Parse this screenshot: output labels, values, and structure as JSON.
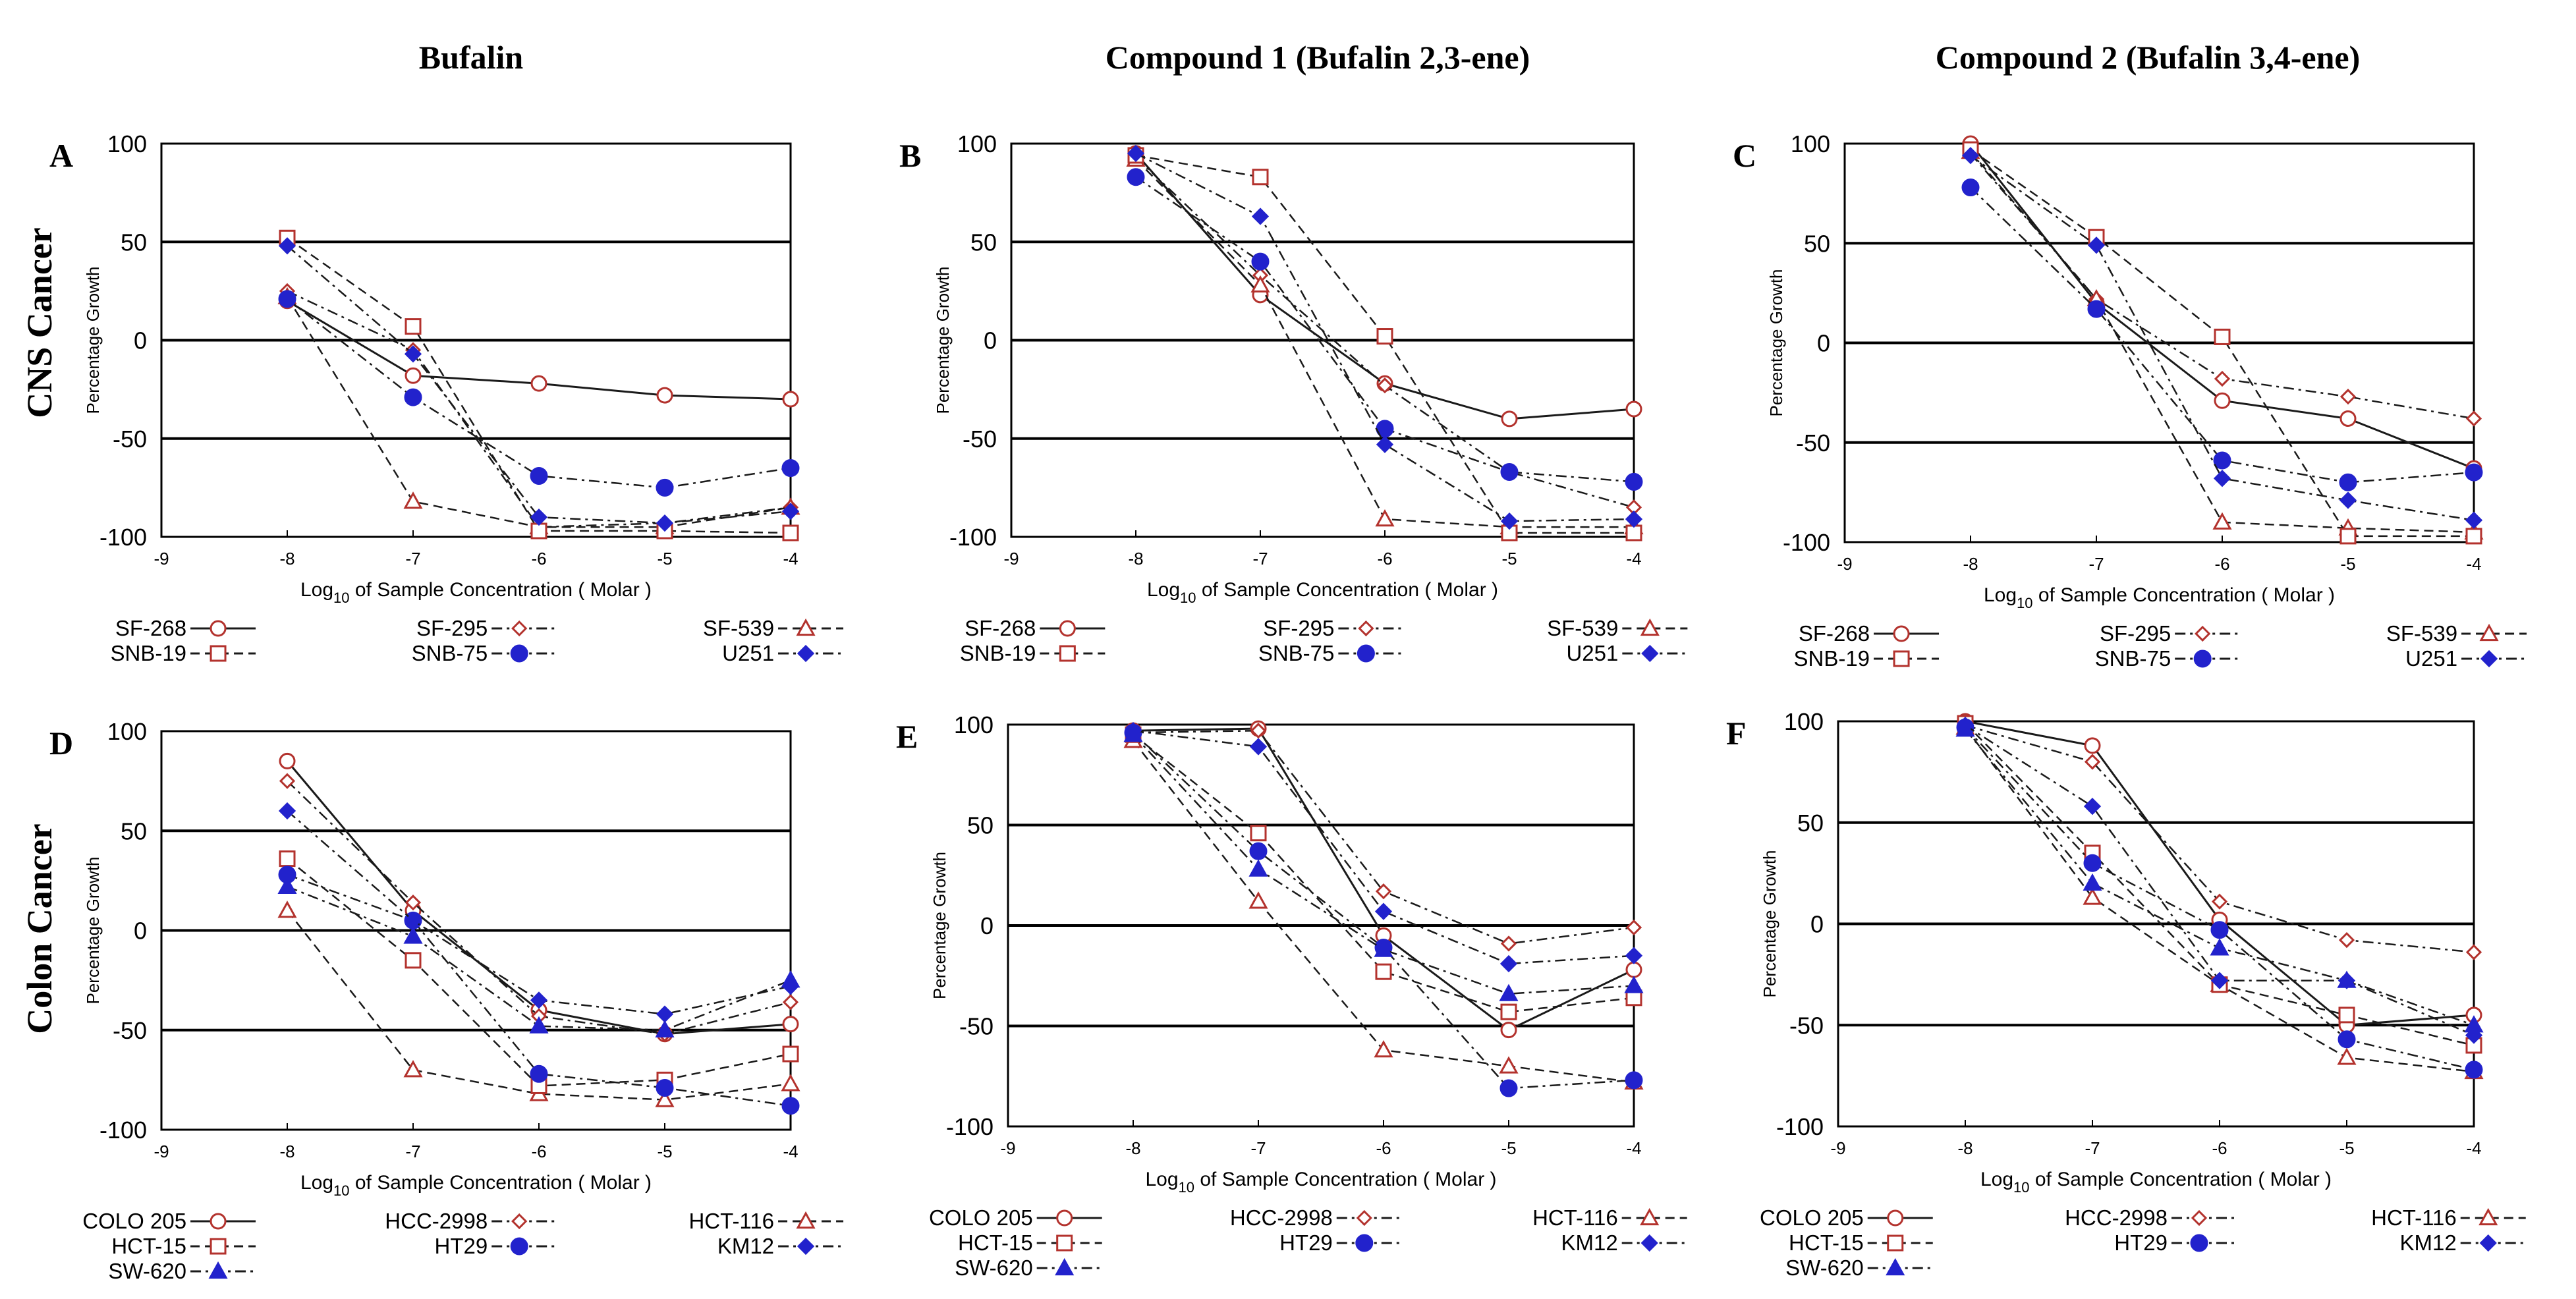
{
  "column_titles": [
    "Bufalin",
    "Compound  1 (Bufalin 2,3-ene)",
    "Compound  2 (Bufalin 3,4-ene)"
  ],
  "row_titles": [
    "CNS Cancer",
    "Colon Cancer"
  ],
  "colors": {
    "red": "#b3322d",
    "blue": "#2222cc",
    "axis": "#000000"
  },
  "chart_data": [
    {
      "panel": "A",
      "type": "line",
      "xlabel_pre": "Log",
      "xlabel_sub": "10",
      "xlabel_post": " of Sample Concentration ( Molar )",
      "ylabel": "Percentage Growth",
      "xlim": [
        -9,
        -4
      ],
      "ylim": [
        -100,
        100
      ],
      "xticks": [
        "-9",
        "-8",
        "-7",
        "-6",
        "-5",
        "-4"
      ],
      "yticks": [
        "100",
        "50",
        "0",
        "-50",
        "-100"
      ],
      "x": [
        -8,
        -7,
        -6,
        -5,
        -4
      ],
      "series": [
        {
          "name": "SF-268",
          "marker": "circle-open",
          "color": "red",
          "dash": "solid",
          "values": [
            20,
            -18,
            -22,
            -28,
            -30
          ]
        },
        {
          "name": "SF-295",
          "marker": "diamond-open",
          "color": "red",
          "dash": "dashdot",
          "values": [
            25,
            -5,
            -95,
            -93,
            -85
          ]
        },
        {
          "name": "SF-539",
          "marker": "triangle-open",
          "color": "red",
          "dash": "dashed",
          "values": [
            22,
            -82,
            -95,
            -95,
            -85
          ]
        },
        {
          "name": "SNB-19",
          "marker": "square-open",
          "color": "red",
          "dash": "dashed",
          "values": [
            52,
            7,
            -97,
            -97,
            -98
          ]
        },
        {
          "name": "SNB-75",
          "marker": "circle-filled",
          "color": "blue",
          "dash": "dashdot",
          "values": [
            21,
            -29,
            -69,
            -75,
            -65
          ]
        },
        {
          "name": "U251",
          "marker": "diamond-filled",
          "color": "blue",
          "dash": "dashdot",
          "values": [
            48,
            -7,
            -90,
            -93,
            -87
          ]
        }
      ]
    },
    {
      "panel": "B",
      "type": "line",
      "xlabel_pre": "Log",
      "xlabel_sub": "10",
      "xlabel_post": " of Sample Concentration ( Molar )",
      "ylabel": "Percentage Growth",
      "xlim": [
        -9,
        -4
      ],
      "ylim": [
        -100,
        100
      ],
      "xticks": [
        "-9",
        "-8",
        "-7",
        "-6",
        "-5",
        "-4"
      ],
      "yticks": [
        "100",
        "50",
        "0",
        "-50",
        "-100"
      ],
      "x": [
        -8,
        -7,
        -6,
        -5,
        -4
      ],
      "series": [
        {
          "name": "SF-268",
          "marker": "circle-open",
          "color": "red",
          "dash": "solid",
          "values": [
            95,
            23,
            -22,
            -40,
            -35
          ]
        },
        {
          "name": "SF-295",
          "marker": "diamond-open",
          "color": "red",
          "dash": "dashdot",
          "values": [
            93,
            33,
            -23,
            -67,
            -85
          ]
        },
        {
          "name": "SF-539",
          "marker": "triangle-open",
          "color": "red",
          "dash": "dashed",
          "values": [
            92,
            28,
            -91,
            -95,
            -95
          ]
        },
        {
          "name": "SNB-19",
          "marker": "square-open",
          "color": "red",
          "dash": "dashed",
          "values": [
            94,
            83,
            2,
            -98,
            -98
          ]
        },
        {
          "name": "SNB-75",
          "marker": "circle-filled",
          "color": "blue",
          "dash": "dashdot",
          "values": [
            83,
            40,
            -45,
            -67,
            -72
          ]
        },
        {
          "name": "U251",
          "marker": "diamond-filled",
          "color": "blue",
          "dash": "dashdot",
          "values": [
            95,
            63,
            -53,
            -92,
            -91
          ]
        }
      ]
    },
    {
      "panel": "C",
      "type": "line",
      "xlabel_pre": "Log",
      "xlabel_sub": "10",
      "xlabel_post": " of Sample Concentration ( Molar )",
      "ylabel": "Percentage Growth",
      "xlim": [
        -9,
        -4
      ],
      "ylim": [
        -100,
        100
      ],
      "xticks": [
        "-9",
        "-8",
        "-7",
        "-6",
        "-5",
        "-4"
      ],
      "yticks": [
        "100",
        "50",
        "0",
        "-50",
        "-100"
      ],
      "x": [
        -8,
        -7,
        -6,
        -5,
        -4
      ],
      "series": [
        {
          "name": "SF-268",
          "marker": "circle-open",
          "color": "red",
          "dash": "solid",
          "values": [
            100,
            20,
            -29,
            -38,
            -63
          ]
        },
        {
          "name": "SF-295",
          "marker": "diamond-open",
          "color": "red",
          "dash": "dashdot",
          "values": [
            95,
            22,
            -18,
            -27,
            -38
          ]
        },
        {
          "name": "SF-539",
          "marker": "triangle-open",
          "color": "red",
          "dash": "dashed",
          "values": [
            96,
            22,
            -90,
            -93,
            -95
          ]
        },
        {
          "name": "SNB-19",
          "marker": "square-open",
          "color": "red",
          "dash": "dashed",
          "values": [
            97,
            53,
            3,
            -97,
            -97
          ]
        },
        {
          "name": "SNB-75",
          "marker": "circle-filled",
          "color": "blue",
          "dash": "dashdot",
          "values": [
            78,
            17,
            -59,
            -70,
            -65
          ]
        },
        {
          "name": "U251",
          "marker": "diamond-filled",
          "color": "blue",
          "dash": "dashdot",
          "values": [
            94,
            49,
            -68,
            -79,
            -89
          ]
        }
      ]
    },
    {
      "panel": "D",
      "type": "line",
      "xlabel_pre": "Log",
      "xlabel_sub": "10",
      "xlabel_post": " of Sample Concentration ( Molar )",
      "ylabel": "Percentage Growth",
      "xlim": [
        -9,
        -4
      ],
      "ylim": [
        -100,
        100
      ],
      "xticks": [
        "-9",
        "-8",
        "-7",
        "-6",
        "-5",
        "-4"
      ],
      "yticks": [
        "100",
        "50",
        "0",
        "-50",
        "-100"
      ],
      "x": [
        -8,
        -7,
        -6,
        -5,
        -4
      ],
      "series": [
        {
          "name": "COLO 205",
          "marker": "circle-open",
          "color": "red",
          "dash": "solid",
          "values": [
            85,
            10,
            -40,
            -52,
            -47
          ]
        },
        {
          "name": "HCC-2998",
          "marker": "diamond-open",
          "color": "red",
          "dash": "dashdot",
          "values": [
            75,
            14,
            -43,
            -52,
            -36
          ]
        },
        {
          "name": "HCT-116",
          "marker": "triangle-open",
          "color": "red",
          "dash": "dashed",
          "values": [
            10,
            -70,
            -82,
            -85,
            -77
          ]
        },
        {
          "name": "HCT-15",
          "marker": "square-open",
          "color": "red",
          "dash": "dashed",
          "values": [
            36,
            -15,
            -78,
            -75,
            -62
          ]
        },
        {
          "name": "HT29",
          "marker": "circle-filled",
          "color": "blue",
          "dash": "dashdot",
          "values": [
            28,
            5,
            -72,
            -79,
            -88
          ]
        },
        {
          "name": "KM12",
          "marker": "diamond-filled",
          "color": "blue",
          "dash": "dashdot",
          "values": [
            60,
            5,
            -35,
            -42,
            -28
          ]
        },
        {
          "name": "SW-620",
          "marker": "triangle-filled",
          "color": "blue",
          "dash": "dashdot",
          "values": [
            22,
            -3,
            -48,
            -50,
            -25
          ]
        }
      ]
    },
    {
      "panel": "E",
      "type": "line",
      "xlabel_pre": "Log",
      "xlabel_sub": "10",
      "xlabel_post": " of Sample Concentration ( Molar )",
      "ylabel": "Percentage Growth",
      "xlim": [
        -9,
        -4
      ],
      "ylim": [
        -100,
        100
      ],
      "xticks": [
        "-9",
        "-8",
        "-7",
        "-6",
        "-5",
        "-4"
      ],
      "yticks": [
        "100",
        "50",
        "0",
        "-50",
        "-100"
      ],
      "x": [
        -8,
        -7,
        -6,
        -5,
        -4
      ],
      "series": [
        {
          "name": "COLO 205",
          "marker": "circle-open",
          "color": "red",
          "dash": "solid",
          "values": [
            97,
            98,
            -5,
            -52,
            -22
          ]
        },
        {
          "name": "HCC-2998",
          "marker": "diamond-open",
          "color": "red",
          "dash": "dashdot",
          "values": [
            96,
            97,
            17,
            -9,
            -1
          ]
        },
        {
          "name": "HCT-116",
          "marker": "triangle-open",
          "color": "red",
          "dash": "dashed",
          "values": [
            92,
            12,
            -62,
            -70,
            -78
          ]
        },
        {
          "name": "HCT-15",
          "marker": "square-open",
          "color": "red",
          "dash": "dashed",
          "values": [
            95,
            46,
            -23,
            -43,
            -36
          ]
        },
        {
          "name": "HT29",
          "marker": "circle-filled",
          "color": "blue",
          "dash": "dashdot",
          "values": [
            96,
            37,
            -11,
            -81,
            -77
          ]
        },
        {
          "name": "KM12",
          "marker": "diamond-filled",
          "color": "blue",
          "dash": "dashdot",
          "values": [
            97,
            89,
            7,
            -19,
            -15
          ]
        },
        {
          "name": "SW-620",
          "marker": "triangle-filled",
          "color": "blue",
          "dash": "dashdot",
          "values": [
            95,
            28,
            -12,
            -34,
            -30
          ]
        }
      ]
    },
    {
      "panel": "F",
      "type": "line",
      "xlabel_pre": "Log",
      "xlabel_sub": "10",
      "xlabel_post": " of Sample Concentration ( Molar )",
      "ylabel": "Percentage Growth",
      "xlim": [
        -9,
        -4
      ],
      "ylim": [
        -100,
        100
      ],
      "xticks": [
        "-9",
        "-8",
        "-7",
        "-6",
        "-5",
        "-4"
      ],
      "yticks": [
        "100",
        "50",
        "0",
        "-50",
        "-100"
      ],
      "x": [
        -8,
        -7,
        -6,
        -5,
        -4
      ],
      "series": [
        {
          "name": "COLO 205",
          "marker": "circle-open",
          "color": "red",
          "dash": "solid",
          "values": [
            100,
            88,
            2,
            -50,
            -45
          ]
        },
        {
          "name": "HCC-2998",
          "marker": "diamond-open",
          "color": "red",
          "dash": "dashdot",
          "values": [
            98,
            80,
            11,
            -8,
            -14
          ]
        },
        {
          "name": "HCT-116",
          "marker": "triangle-open",
          "color": "red",
          "dash": "dashed",
          "values": [
            97,
            13,
            -30,
            -66,
            -73
          ]
        },
        {
          "name": "HCT-15",
          "marker": "square-open",
          "color": "red",
          "dash": "dashed",
          "values": [
            99,
            35,
            -30,
            -45,
            -60
          ]
        },
        {
          "name": "HT29",
          "marker": "circle-filled",
          "color": "blue",
          "dash": "dashdot",
          "values": [
            97,
            30,
            -3,
            -57,
            -72
          ]
        },
        {
          "name": "KM12",
          "marker": "diamond-filled",
          "color": "blue",
          "dash": "dashdot",
          "values": [
            98,
            58,
            -28,
            -28,
            -55
          ]
        },
        {
          "name": "SW-620",
          "marker": "triangle-filled",
          "color": "blue",
          "dash": "dashdot",
          "values": [
            96,
            20,
            -12,
            -28,
            -50
          ]
        }
      ]
    }
  ]
}
